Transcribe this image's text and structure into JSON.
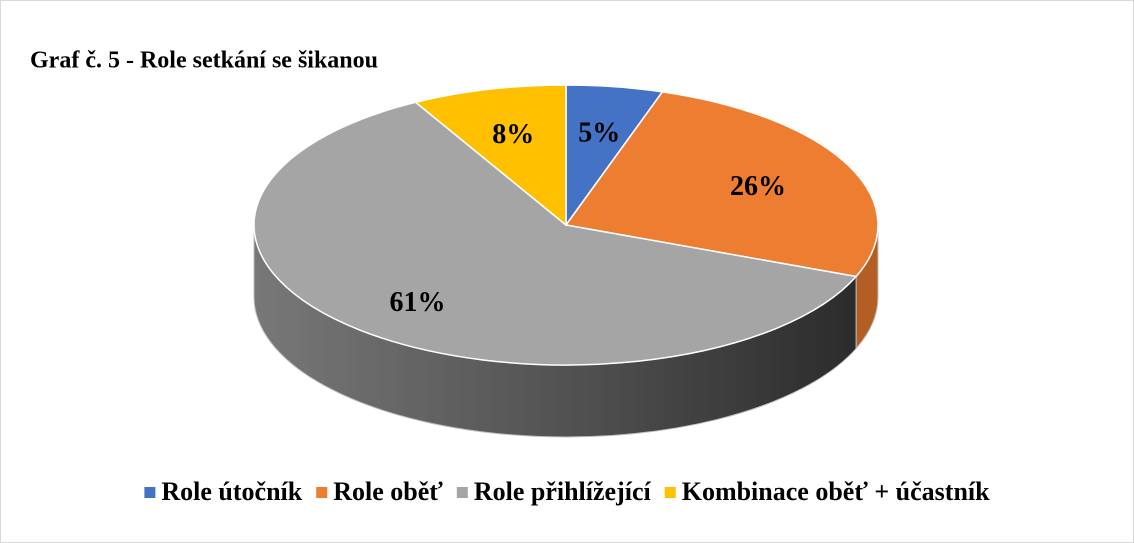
{
  "chart_data": {
    "type": "pie",
    "title": "Graf č. 5 - Role setkání se šikanou",
    "categories": [
      "Role útočník",
      "Role oběť",
      "Role přihlížející",
      "Kombinace oběť + účastník"
    ],
    "values": [
      5,
      26,
      61,
      8
    ],
    "value_labels": [
      "5%",
      "26%",
      "61%",
      "8%"
    ],
    "colors": [
      "#4472c4",
      "#ed7d31",
      "#a5a5a5",
      "#ffc000"
    ],
    "legend": "bottom"
  }
}
